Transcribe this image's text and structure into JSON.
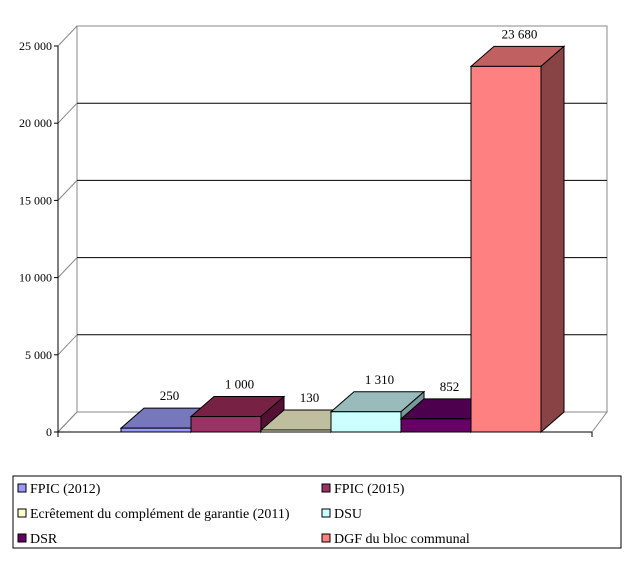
{
  "chart_data": {
    "type": "bar",
    "title": "",
    "xlabel": "",
    "ylabel": "",
    "ylim": [
      0,
      25000
    ],
    "yticks": [
      0,
      5000,
      10000,
      15000,
      20000,
      25000
    ],
    "ytick_labels": [
      "0",
      "5 000",
      "10 000",
      "15 000",
      "20 000",
      "25 000"
    ],
    "grid": true,
    "legend_position": "bottom",
    "series": [
      {
        "name": "FPIC (2012)",
        "value": 250,
        "label": "250",
        "color": "#9999FF",
        "top": "#7777BB",
        "side": "#555599"
      },
      {
        "name": "FPIC (2015)",
        "value": 1000,
        "label": "1 000",
        "color": "#993366",
        "top": "#772244",
        "side": "#551133"
      },
      {
        "name": "Ecrêtement du complément de garantie (2011)",
        "value": 130,
        "label": "130",
        "color": "#FFFFCC",
        "top": "#BFBF9F",
        "side": "#8F8F70"
      },
      {
        "name": "DSU",
        "value": 1310,
        "label": "1 310",
        "color": "#CCFFFF",
        "top": "#99BBBB",
        "side": "#779999"
      },
      {
        "name": "DSR",
        "value": 852,
        "label": "852",
        "color": "#660066",
        "top": "#4D004D",
        "side": "#330033"
      },
      {
        "name": "DGF du bloc communal",
        "value": 23680,
        "label": "23 680",
        "color": "#FF8080",
        "top": "#C06060",
        "side": "#884444"
      }
    ]
  }
}
